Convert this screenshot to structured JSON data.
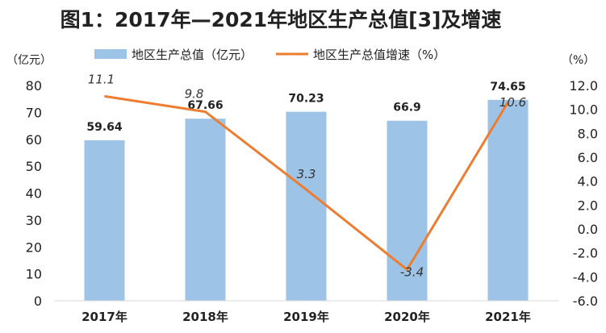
{
  "chart_data": {
    "type": "bar+line",
    "title": "图1：2017年—2021年地区生产总值[3]及增速",
    "left_unit": "（亿元）",
    "right_unit": "（%）",
    "categories": [
      "2017年",
      "2018年",
      "2019年",
      "2020年",
      "2021年"
    ],
    "series": [
      {
        "name": "地区生产总值（亿元）",
        "type": "bar",
        "axis": "left",
        "color": "#9DC3E6",
        "values": [
          59.64,
          67.66,
          70.23,
          66.9,
          74.65
        ],
        "labels": [
          "59.64",
          "67.66",
          "70.23",
          "66.9",
          "74.65"
        ]
      },
      {
        "name": "地区生产总值增速（%）",
        "type": "line",
        "axis": "right",
        "color": "#ED7D31",
        "values": [
          11.1,
          9.8,
          3.3,
          -3.4,
          10.6
        ],
        "labels": [
          "11.1",
          "9.8",
          "3.3",
          "-3.4",
          "10.6"
        ]
      }
    ],
    "left_axis": {
      "min": 0,
      "max": 80,
      "step": 10,
      "ticks": [
        "0",
        "10",
        "20",
        "30",
        "40",
        "50",
        "60",
        "70",
        "80"
      ]
    },
    "right_axis": {
      "min": -6,
      "max": 12,
      "step": 2,
      "ticks": [
        "-6.0",
        "-4.0",
        "-2.0",
        "0.0",
        "2.0",
        "4.0",
        "6.0",
        "8.0",
        "10.0",
        "12.0"
      ]
    },
    "legend_position": "top",
    "grid": false
  }
}
